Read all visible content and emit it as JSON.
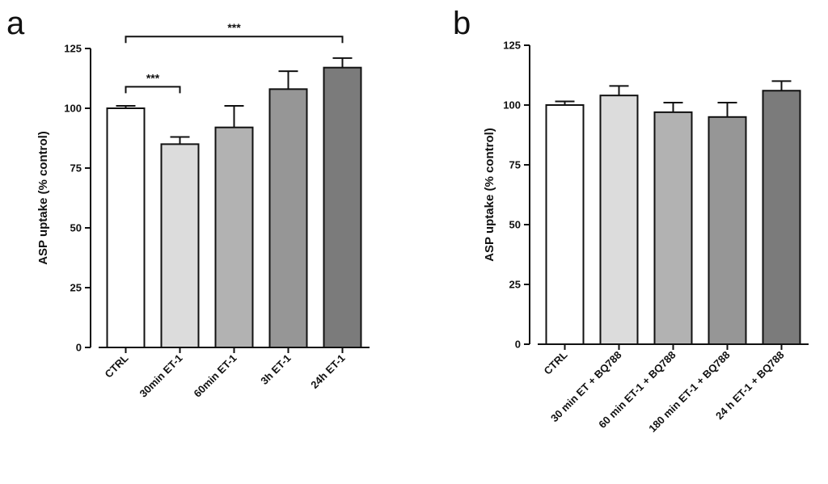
{
  "chart_data": [
    {
      "panel_label": "a",
      "type": "bar",
      "ylabel": "ASP uptake (% control)",
      "ylim": [
        0,
        125
      ],
      "yticks": [
        0,
        25,
        50,
        75,
        100,
        125
      ],
      "categories": [
        "CTRL",
        "30min ET-1",
        "60min ET-1",
        "3h ET-1",
        "24h ET-1"
      ],
      "values": [
        100,
        85,
        92,
        108,
        117
      ],
      "errors": [
        1,
        3,
        9,
        7.5,
        4
      ],
      "bar_colors": [
        "#ffffff",
        "#dcdcdc",
        "#b2b2b2",
        "#969696",
        "#7b7b7b"
      ],
      "significance": [
        {
          "from": 0,
          "to": 1,
          "label": "***",
          "y": 109
        },
        {
          "from": 0,
          "to": 4,
          "label": "***",
          "y": 130
        }
      ]
    },
    {
      "panel_label": "b",
      "type": "bar",
      "ylabel": "ASP uptake (% control)",
      "ylim": [
        0,
        125
      ],
      "yticks": [
        0,
        25,
        50,
        75,
        100,
        125
      ],
      "categories": [
        "CTRL",
        "30 min ET + BQ788",
        "60 min ET-1 + BQ788",
        "180 min ET-1 + BQ788",
        "24 h ET-1 + BQ788"
      ],
      "values": [
        100,
        104,
        97,
        95,
        106
      ],
      "errors": [
        1.5,
        4,
        4,
        6,
        4
      ],
      "bar_colors": [
        "#ffffff",
        "#dcdcdc",
        "#b2b2b2",
        "#969696",
        "#7b7b7b"
      ],
      "significance": []
    }
  ]
}
